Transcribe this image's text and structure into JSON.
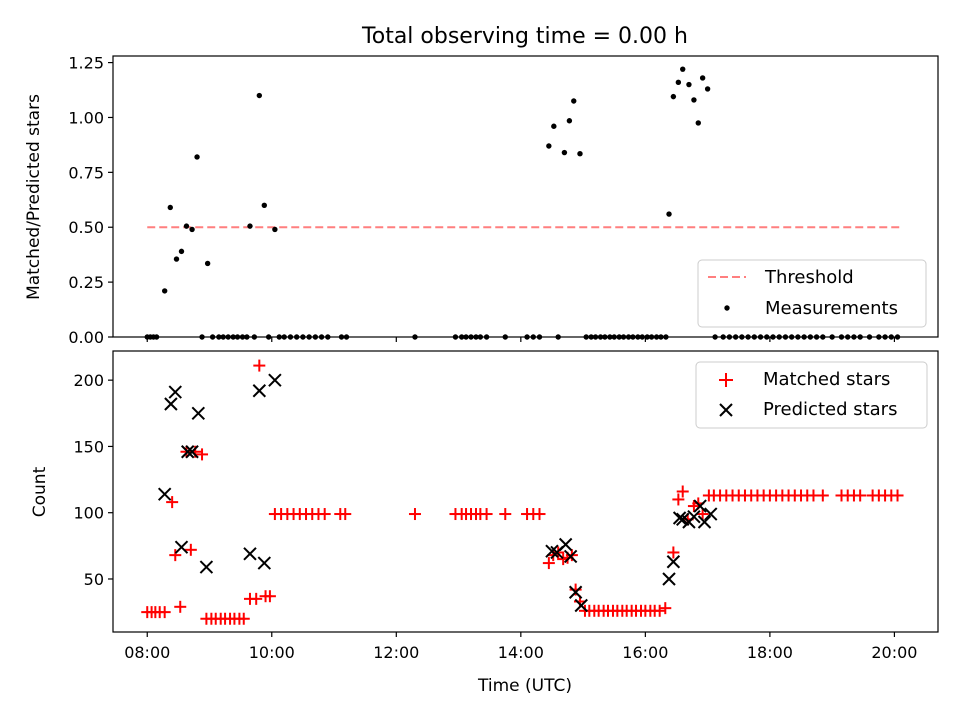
{
  "chart_data": [
    {
      "type": "scatter",
      "title": "Total observing time = 0.00 h",
      "xlabel": "",
      "ylabel": "Matched/Predicted stars",
      "xlim_hours": [
        7.45,
        20.7
      ],
      "ylim": [
        0,
        1.28
      ],
      "yticks": [
        0.0,
        0.25,
        0.5,
        0.75,
        1.0,
        1.25
      ],
      "ytick_labels": [
        "0.00",
        "0.25",
        "0.50",
        "0.75",
        "1.00",
        "1.25"
      ],
      "xticks_hours": [
        8,
        10,
        12,
        14,
        16,
        18,
        20
      ],
      "legend_position": "lower right",
      "legend": [
        "Threshold",
        "Measurements"
      ],
      "threshold": {
        "name": "Threshold",
        "y": 0.5,
        "x_range_hours": [
          8.0,
          20.1
        ],
        "color": "#ff7f7f"
      },
      "series": [
        {
          "name": "Measurements",
          "color": "#000000",
          "points_hours": [
            [
              8.0,
              0
            ],
            [
              8.05,
              0
            ],
            [
              8.1,
              0
            ],
            [
              8.15,
              0
            ],
            [
              8.28,
              0.21
            ],
            [
              8.37,
              0.59
            ],
            [
              8.47,
              0.355
            ],
            [
              8.55,
              0.39
            ],
            [
              8.63,
              0.505
            ],
            [
              8.72,
              0.49
            ],
            [
              8.8,
              0.82
            ],
            [
              8.88,
              0
            ],
            [
              8.97,
              0.335
            ],
            [
              9.05,
              0
            ],
            [
              9.15,
              0
            ],
            [
              9.22,
              0
            ],
            [
              9.3,
              0
            ],
            [
              9.38,
              0
            ],
            [
              9.45,
              0
            ],
            [
              9.53,
              0
            ],
            [
              9.6,
              0
            ],
            [
              9.65,
              0.505
            ],
            [
              9.72,
              0
            ],
            [
              9.8,
              1.1
            ],
            [
              9.88,
              0.6
            ],
            [
              9.95,
              0
            ],
            [
              10.05,
              0.49
            ],
            [
              10.12,
              0
            ],
            [
              10.2,
              0
            ],
            [
              10.3,
              0
            ],
            [
              10.4,
              0
            ],
            [
              10.5,
              0
            ],
            [
              10.6,
              0
            ],
            [
              10.7,
              0
            ],
            [
              10.8,
              0
            ],
            [
              10.9,
              0
            ],
            [
              11.12,
              0
            ],
            [
              11.2,
              0
            ],
            [
              12.3,
              0
            ],
            [
              12.95,
              0
            ],
            [
              13.05,
              0
            ],
            [
              13.12,
              0
            ],
            [
              13.2,
              0
            ],
            [
              13.28,
              0
            ],
            [
              13.35,
              0
            ],
            [
              13.45,
              0
            ],
            [
              13.75,
              0
            ],
            [
              14.1,
              0
            ],
            [
              14.2,
              0
            ],
            [
              14.3,
              0
            ],
            [
              14.45,
              0.87
            ],
            [
              14.53,
              0.96
            ],
            [
              14.6,
              0
            ],
            [
              14.7,
              0.84
            ],
            [
              14.78,
              0.985
            ],
            [
              14.85,
              1.075
            ],
            [
              14.95,
              0.835
            ],
            [
              15.05,
              0
            ],
            [
              15.13,
              0
            ],
            [
              15.2,
              0
            ],
            [
              15.28,
              0
            ],
            [
              15.35,
              0
            ],
            [
              15.43,
              0
            ],
            [
              15.5,
              0
            ],
            [
              15.58,
              0
            ],
            [
              15.65,
              0
            ],
            [
              15.73,
              0
            ],
            [
              15.8,
              0
            ],
            [
              15.88,
              0
            ],
            [
              15.95,
              0
            ],
            [
              16.03,
              0
            ],
            [
              16.1,
              0
            ],
            [
              16.18,
              0
            ],
            [
              16.25,
              0
            ],
            [
              16.33,
              0
            ],
            [
              16.38,
              0.56
            ],
            [
              16.45,
              1.095
            ],
            [
              16.53,
              1.16
            ],
            [
              16.6,
              1.22
            ],
            [
              16.7,
              1.15
            ],
            [
              16.78,
              1.08
            ],
            [
              16.85,
              0.975
            ],
            [
              16.92,
              1.18
            ],
            [
              17.0,
              1.13
            ],
            [
              17.12,
              0
            ],
            [
              17.25,
              0
            ],
            [
              17.35,
              0
            ],
            [
              17.45,
              0
            ],
            [
              17.55,
              0
            ],
            [
              17.65,
              0
            ],
            [
              17.75,
              0
            ],
            [
              17.85,
              0
            ],
            [
              17.95,
              0
            ],
            [
              18.05,
              0
            ],
            [
              18.15,
              0
            ],
            [
              18.25,
              0
            ],
            [
              18.35,
              0
            ],
            [
              18.45,
              0
            ],
            [
              18.55,
              0
            ],
            [
              18.65,
              0
            ],
            [
              18.75,
              0
            ],
            [
              18.85,
              0
            ],
            [
              19.0,
              0
            ],
            [
              19.15,
              0
            ],
            [
              19.25,
              0
            ],
            [
              19.35,
              0
            ],
            [
              19.45,
              0
            ],
            [
              19.6,
              0
            ],
            [
              19.75,
              0
            ],
            [
              19.85,
              0
            ],
            [
              19.95,
              0
            ],
            [
              20.05,
              0
            ]
          ]
        }
      ]
    },
    {
      "type": "scatter",
      "title": "",
      "xlabel": "Time (UTC)",
      "ylabel": "Count",
      "xlim_hours": [
        7.45,
        20.7
      ],
      "ylim": [
        10,
        222
      ],
      "yticks": [
        50,
        100,
        150,
        200
      ],
      "ytick_labels": [
        "50",
        "100",
        "150",
        "200"
      ],
      "xticks_hours": [
        8,
        10,
        12,
        14,
        16,
        18,
        20
      ],
      "xtick_labels": [
        "08:00",
        "10:00",
        "12:00",
        "14:00",
        "16:00",
        "18:00",
        "20:00"
      ],
      "legend_position": "upper right",
      "legend": [
        "Matched stars",
        "Predicted stars"
      ],
      "series": [
        {
          "name": "Matched stars",
          "color": "#ff0000",
          "marker": "+",
          "points_hours": [
            [
              8.0,
              25
            ],
            [
              8.07,
              25
            ],
            [
              8.13,
              25
            ],
            [
              8.2,
              25
            ],
            [
              8.28,
              25
            ],
            [
              8.4,
              108
            ],
            [
              8.45,
              68
            ],
            [
              8.53,
              29
            ],
            [
              8.63,
              146
            ],
            [
              8.7,
              72
            ],
            [
              8.77,
              146
            ],
            [
              8.88,
              144
            ],
            [
              8.95,
              20
            ],
            [
              9.03,
              20
            ],
            [
              9.1,
              20
            ],
            [
              9.18,
              20
            ],
            [
              9.25,
              20
            ],
            [
              9.33,
              20
            ],
            [
              9.4,
              20
            ],
            [
              9.48,
              20
            ],
            [
              9.55,
              20
            ],
            [
              9.65,
              35
            ],
            [
              9.75,
              35
            ],
            [
              9.8,
              211
            ],
            [
              9.9,
              37
            ],
            [
              9.97,
              37
            ],
            [
              10.05,
              99
            ],
            [
              10.15,
              99
            ],
            [
              10.25,
              99
            ],
            [
              10.35,
              99
            ],
            [
              10.45,
              99
            ],
            [
              10.55,
              99
            ],
            [
              10.65,
              99
            ],
            [
              10.75,
              99
            ],
            [
              10.85,
              99
            ],
            [
              11.1,
              99
            ],
            [
              11.18,
              99
            ],
            [
              12.3,
              99
            ],
            [
              12.95,
              99
            ],
            [
              13.05,
              99
            ],
            [
              13.12,
              99
            ],
            [
              13.2,
              99
            ],
            [
              13.28,
              99
            ],
            [
              13.35,
              99
            ],
            [
              13.45,
              99
            ],
            [
              13.75,
              99
            ],
            [
              14.1,
              99
            ],
            [
              14.2,
              99
            ],
            [
              14.3,
              99
            ],
            [
              14.45,
              62
            ],
            [
              14.52,
              68
            ],
            [
              14.6,
              70
            ],
            [
              14.68,
              65
            ],
            [
              14.75,
              66
            ],
            [
              14.82,
              68
            ],
            [
              14.88,
              42
            ],
            [
              14.95,
              33
            ],
            [
              15.03,
              26
            ],
            [
              15.1,
              26
            ],
            [
              15.18,
              26
            ],
            [
              15.25,
              26
            ],
            [
              15.33,
              26
            ],
            [
              15.4,
              26
            ],
            [
              15.48,
              26
            ],
            [
              15.55,
              26
            ],
            [
              15.63,
              26
            ],
            [
              15.7,
              26
            ],
            [
              15.78,
              26
            ],
            [
              15.85,
              26
            ],
            [
              15.93,
              26
            ],
            [
              16.0,
              26
            ],
            [
              16.08,
              26
            ],
            [
              16.15,
              26
            ],
            [
              16.23,
              26
            ],
            [
              16.32,
              28
            ],
            [
              16.45,
              70
            ],
            [
              16.53,
              110
            ],
            [
              16.6,
              116
            ],
            [
              16.68,
              95
            ],
            [
              16.78,
              105
            ],
            [
              16.85,
              107
            ],
            [
              16.92,
              99
            ],
            [
              17.02,
              113
            ],
            [
              17.1,
              113
            ],
            [
              17.2,
              113
            ],
            [
              17.3,
              113
            ],
            [
              17.4,
              113
            ],
            [
              17.5,
              113
            ],
            [
              17.6,
              113
            ],
            [
              17.7,
              113
            ],
            [
              17.8,
              113
            ],
            [
              17.9,
              113
            ],
            [
              18.0,
              113
            ],
            [
              18.1,
              113
            ],
            [
              18.2,
              113
            ],
            [
              18.3,
              113
            ],
            [
              18.4,
              113
            ],
            [
              18.5,
              113
            ],
            [
              18.6,
              113
            ],
            [
              18.7,
              113
            ],
            [
              18.85,
              113
            ],
            [
              19.15,
              113
            ],
            [
              19.25,
              113
            ],
            [
              19.35,
              113
            ],
            [
              19.45,
              113
            ],
            [
              19.65,
              113
            ],
            [
              19.75,
              113
            ],
            [
              19.85,
              113
            ],
            [
              19.95,
              113
            ],
            [
              20.05,
              113
            ]
          ]
        },
        {
          "name": "Predicted stars",
          "color": "#000000",
          "marker": "x",
          "points_hours": [
            [
              8.28,
              114
            ],
            [
              8.38,
              182
            ],
            [
              8.45,
              191
            ],
            [
              8.55,
              74
            ],
            [
              8.65,
              146
            ],
            [
              8.72,
              146
            ],
            [
              8.82,
              175
            ],
            [
              8.95,
              59
            ],
            [
              9.65,
              69
            ],
            [
              9.8,
              192
            ],
            [
              9.88,
              62
            ],
            [
              10.05,
              200
            ],
            [
              14.5,
              71
            ],
            [
              14.58,
              70
            ],
            [
              14.72,
              76
            ],
            [
              14.8,
              67
            ],
            [
              14.88,
              40
            ],
            [
              14.97,
              30
            ],
            [
              16.38,
              50
            ],
            [
              16.45,
              63
            ],
            [
              16.55,
              96
            ],
            [
              16.6,
              95
            ],
            [
              16.7,
              93
            ],
            [
              16.78,
              97
            ],
            [
              16.88,
              105
            ],
            [
              16.95,
              93
            ],
            [
              17.05,
              99
            ]
          ]
        }
      ]
    }
  ]
}
